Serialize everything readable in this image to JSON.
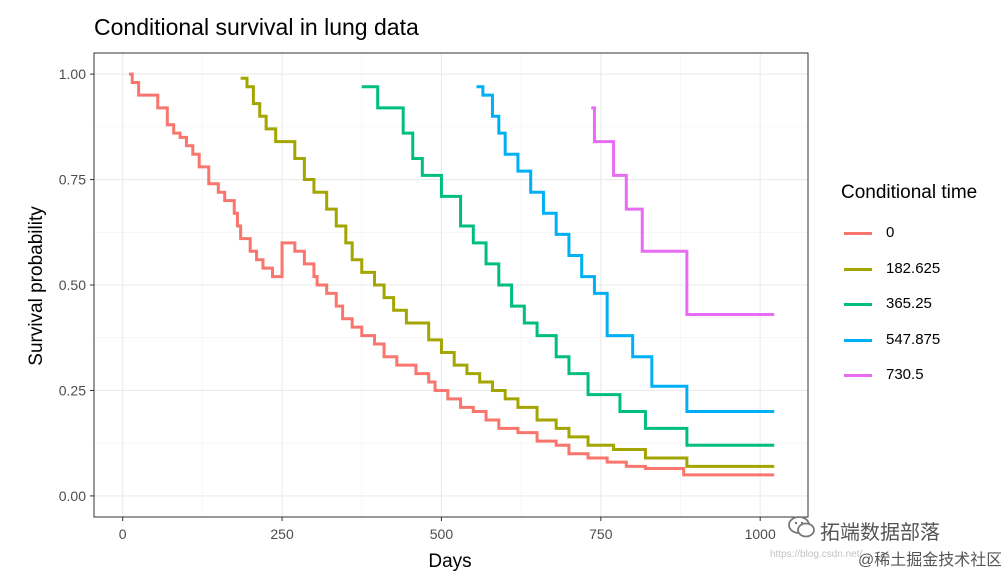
{
  "chart_data": {
    "type": "line",
    "step": true,
    "title": "Conditional survival in lung data",
    "xlabel": "Days",
    "ylabel": "Survival probability",
    "xlim": [
      -45,
      1075
    ],
    "ylim": [
      -0.05,
      1.05
    ],
    "xticks": [
      0,
      250,
      500,
      750,
      1000
    ],
    "yticks": [
      0.0,
      0.25,
      0.5,
      0.75,
      1.0
    ],
    "xtick_labels": [
      "0",
      "250",
      "500",
      "750",
      "1000"
    ],
    "ytick_labels": [
      "0.00",
      "0.25",
      "0.50",
      "0.75",
      "1.00"
    ],
    "grid": true,
    "legend": {
      "title": "Conditional time",
      "position": "right"
    },
    "series": [
      {
        "name": "0",
        "color": "#F8766D",
        "x": [
          10,
          15,
          25,
          35,
          55,
          70,
          80,
          90,
          100,
          110,
          120,
          135,
          150,
          160,
          175,
          180,
          185,
          200,
          210,
          220,
          235,
          250,
          270,
          285,
          300,
          305,
          320,
          335,
          345,
          360,
          375,
          395,
          410,
          430,
          460,
          480,
          490,
          510,
          530,
          550,
          570,
          590,
          620,
          650,
          680,
          700,
          730,
          760,
          790,
          820,
          880,
          890,
          1022
        ],
        "y": [
          1.0,
          0.98,
          0.95,
          0.95,
          0.92,
          0.88,
          0.86,
          0.85,
          0.83,
          0.81,
          0.78,
          0.74,
          0.72,
          0.7,
          0.67,
          0.64,
          0.61,
          0.58,
          0.56,
          0.54,
          0.52,
          0.6,
          0.58,
          0.55,
          0.52,
          0.5,
          0.48,
          0.45,
          0.42,
          0.4,
          0.38,
          0.36,
          0.33,
          0.31,
          0.29,
          0.27,
          0.25,
          0.23,
          0.21,
          0.2,
          0.18,
          0.16,
          0.15,
          0.13,
          0.12,
          0.1,
          0.09,
          0.08,
          0.07,
          0.065,
          0.05,
          0.05,
          0.05
        ]
      },
      {
        "name": "182.625",
        "color": "#A3A500",
        "x": [
          185,
          195,
          205,
          215,
          225,
          240,
          250,
          270,
          285,
          300,
          320,
          335,
          350,
          360,
          375,
          395,
          410,
          425,
          445,
          480,
          500,
          520,
          540,
          560,
          580,
          600,
          620,
          650,
          680,
          700,
          730,
          770,
          820,
          885,
          1022
        ],
        "y": [
          0.99,
          0.97,
          0.93,
          0.9,
          0.87,
          0.84,
          0.84,
          0.8,
          0.75,
          0.72,
          0.68,
          0.64,
          0.6,
          0.56,
          0.53,
          0.5,
          0.47,
          0.44,
          0.41,
          0.37,
          0.34,
          0.31,
          0.29,
          0.27,
          0.25,
          0.23,
          0.21,
          0.18,
          0.16,
          0.14,
          0.12,
          0.11,
          0.09,
          0.07,
          0.07
        ]
      },
      {
        "name": "365.25",
        "color": "#00BF7D",
        "x": [
          375,
          390,
          400,
          420,
          440,
          455,
          470,
          500,
          510,
          530,
          550,
          570,
          590,
          610,
          630,
          650,
          680,
          700,
          730,
          780,
          820,
          885,
          1022
        ],
        "y": [
          0.97,
          0.97,
          0.92,
          0.92,
          0.86,
          0.8,
          0.76,
          0.71,
          0.71,
          0.64,
          0.6,
          0.55,
          0.5,
          0.45,
          0.41,
          0.38,
          0.33,
          0.29,
          0.24,
          0.2,
          0.16,
          0.12,
          0.12
        ]
      },
      {
        "name": "547.875",
        "color": "#00B0F6",
        "x": [
          555,
          565,
          580,
          590,
          600,
          620,
          640,
          660,
          680,
          700,
          720,
          740,
          760,
          800,
          830,
          885,
          1022
        ],
        "y": [
          0.97,
          0.95,
          0.9,
          0.86,
          0.81,
          0.77,
          0.72,
          0.67,
          0.62,
          0.57,
          0.52,
          0.48,
          0.38,
          0.33,
          0.26,
          0.2,
          0.2
        ]
      },
      {
        "name": "730.5",
        "color": "#E76BF3",
        "x": [
          735,
          740,
          770,
          790,
          815,
          830,
          885,
          1022
        ],
        "y": [
          0.92,
          0.84,
          0.76,
          0.68,
          0.58,
          0.58,
          0.43,
          0.43
        ]
      }
    ]
  },
  "watermark": {
    "brand": "拓端数据部落",
    "site": "@稀土掘金技术社区",
    "url": "https://blog.csdn.net/"
  }
}
